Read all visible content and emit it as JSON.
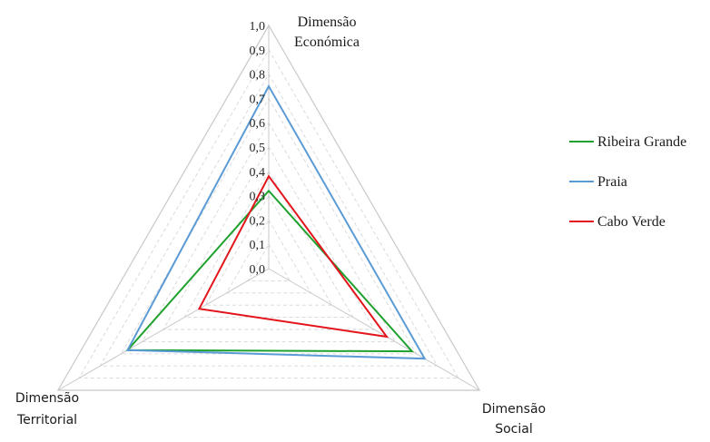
{
  "chart_data": {
    "type": "radar",
    "axes": [
      {
        "key": "economica",
        "label_lines": [
          "Dimensão",
          "Económica"
        ]
      },
      {
        "key": "social",
        "label_lines": [
          "Dimensão",
          "Social"
        ]
      },
      {
        "key": "territorial",
        "label_lines": [
          "Dimensão",
          "Territorial"
        ]
      }
    ],
    "radial_range": [
      0,
      1
    ],
    "ticks": [
      "0,0",
      "0,1",
      "0,2",
      "0,3",
      "0,4",
      "0,5",
      "0,6",
      "0,7",
      "0,8",
      "0,9",
      "1,0"
    ],
    "gridlines": true,
    "legend_position": "right",
    "series": [
      {
        "name": "Ribeira Grande",
        "color": "#1fa12e",
        "values": [
          0.32,
          0.68,
          0.67
        ]
      },
      {
        "name": "Praia",
        "color": "#5b9bd5",
        "values": [
          0.75,
          0.74,
          0.67
        ]
      },
      {
        "name": "Cabo Verde",
        "color": "#e3141b",
        "values": [
          0.38,
          0.56,
          0.33
        ]
      }
    ]
  }
}
